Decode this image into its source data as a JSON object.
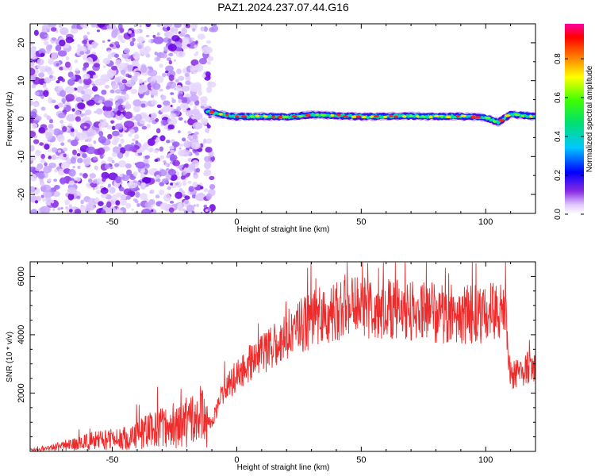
{
  "title": "PAZ1.2024.237.07.44.G16",
  "chart_data": [
    {
      "type": "heatmap",
      "xlabel": "Height of straight line (km)",
      "ylabel": "Frequency (Hz)",
      "xlim": [
        -83,
        120
      ],
      "ylim": [
        -25,
        25
      ],
      "xticks": [
        -50,
        0,
        50,
        100
      ],
      "yticks": [
        20,
        10,
        0,
        -10,
        -20
      ],
      "signal_track_height_range": [
        -12,
        120
      ],
      "signal_track_frequency": [
        [
          -12,
          2.0
        ],
        [
          -8,
          1.2
        ],
        [
          0,
          0.5
        ],
        [
          10,
          0.6
        ],
        [
          20,
          0.4
        ],
        [
          30,
          1.0
        ],
        [
          40,
          0.8
        ],
        [
          50,
          0.5
        ],
        [
          60,
          0.6
        ],
        [
          70,
          0.7
        ],
        [
          80,
          0.5
        ],
        [
          90,
          0.6
        ],
        [
          100,
          0.3
        ],
        [
          105,
          -1.0
        ],
        [
          110,
          1.2
        ],
        [
          120,
          0.5
        ]
      ],
      "noise_region_height_range": [
        -83,
        -12
      ],
      "colorbar": {
        "label": "Normalized spectral amplitude",
        "range": [
          0,
          0.98
        ],
        "ticks": [
          0.0,
          0.2,
          0.4,
          0.6,
          0.8
        ],
        "tick_labels": [
          "0.0",
          "0.2",
          "0.4",
          "0.6",
          "0.8"
        ],
        "colormap": "rainbow (white→purple→blue→cyan→green→yellow→orange→red→magenta)"
      }
    },
    {
      "type": "line",
      "xlabel": "Height of straight line (km)",
      "ylabel": "SNR (10 * v/v)",
      "xlim": [
        -83,
        120
      ],
      "ylim": [
        0,
        6500
      ],
      "xticks": [
        -50,
        0,
        50,
        100
      ],
      "yticks": [
        6000,
        4000,
        2000
      ],
      "series": [
        {
          "color": "#ee2a2a",
          "x": [
            -83,
            -75,
            -65,
            -55,
            -45,
            -40,
            -35,
            -30,
            -25,
            -20,
            -15,
            -12,
            -10,
            -8,
            -5,
            0,
            5,
            10,
            15,
            20,
            25,
            30,
            35,
            40,
            45,
            50,
            55,
            60,
            70,
            80,
            90,
            100,
            105,
            108,
            109,
            110,
            115,
            120
          ],
          "y": [
            50,
            120,
            250,
            400,
            450,
            550,
            700,
            800,
            900,
            1000,
            1100,
            1200,
            900,
            1500,
            2100,
            2600,
            3000,
            3300,
            3600,
            3900,
            4300,
            4500,
            4700,
            4800,
            4900,
            4900,
            4850,
            4850,
            4800,
            4750,
            4700,
            4750,
            4750,
            4800,
            3000,
            2600,
            2800,
            3000
          ]
        }
      ]
    }
  ],
  "colors": {
    "signal_line": "#ee2a2a",
    "axis": "#000000"
  }
}
